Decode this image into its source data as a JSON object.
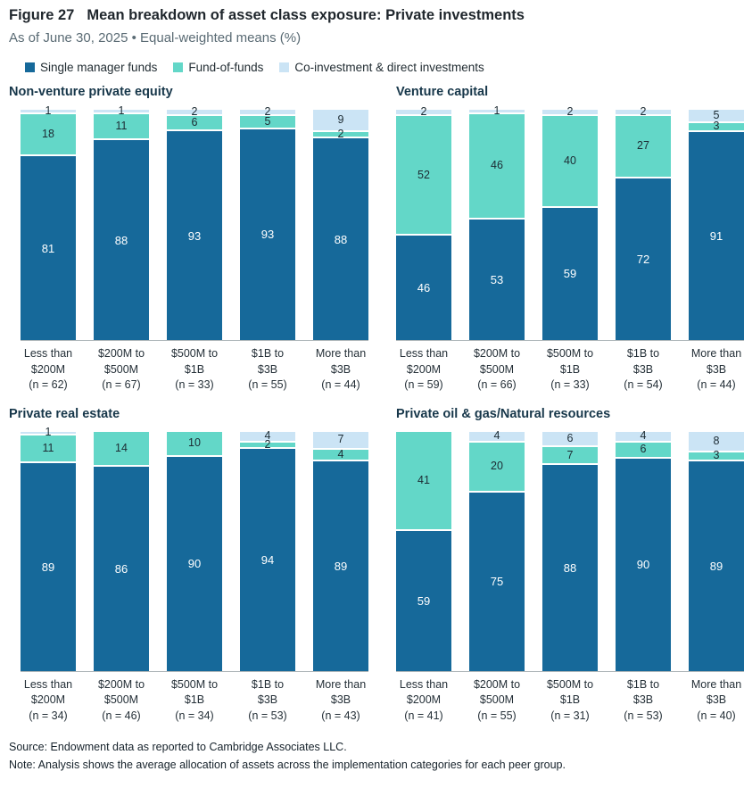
{
  "header": {
    "figure_label": "Figure 27",
    "title": "Mean breakdown of asset class exposure: Private investments",
    "subtitle": "As of June 30, 2025 • Equal-weighted means (%)"
  },
  "legend": {
    "items": [
      {
        "label": "Single manager funds",
        "color": "#16699a"
      },
      {
        "label": "Fund-of-funds",
        "color": "#63d7c8"
      },
      {
        "label": "Co-investment & direct investments",
        "color": "#cbe4f5"
      }
    ]
  },
  "colors": {
    "single_manager_funds": "#16699a",
    "fund_of_funds": "#63d7c8",
    "co_investment": "#cbe4f5",
    "axis_line": "#adb5b8"
  },
  "chart_data": [
    {
      "type": "bar",
      "stacked": true,
      "title": "Non-venture private equity",
      "ylim": [
        0,
        100
      ],
      "grid": false,
      "legend_position": "top-shared",
      "categories": [
        [
          "Less than",
          "$200M",
          "(n = 62)"
        ],
        [
          "$200M to",
          "$500M",
          "(n = 67)"
        ],
        [
          "$500M to",
          "$1B",
          "(n = 33)"
        ],
        [
          "$1B to",
          "$3B",
          "(n = 55)"
        ],
        [
          "More than",
          "$3B",
          "(n = 44)"
        ]
      ],
      "series": [
        {
          "name": "Single manager funds",
          "values": [
            81,
            88,
            93,
            93,
            88
          ]
        },
        {
          "name": "Fund-of-funds",
          "values": [
            18,
            11,
            6,
            5,
            2
          ]
        },
        {
          "name": "Co-investment & direct investments",
          "values": [
            1,
            1,
            2,
            2,
            9
          ]
        }
      ]
    },
    {
      "type": "bar",
      "stacked": true,
      "title": "Venture capital",
      "ylim": [
        0,
        100
      ],
      "grid": false,
      "legend_position": "top-shared",
      "categories": [
        [
          "Less than",
          "$200M",
          "(n = 59)"
        ],
        [
          "$200M to",
          "$500M",
          "(n = 66)"
        ],
        [
          "$500M to",
          "$1B",
          "(n = 33)"
        ],
        [
          "$1B to",
          "$3B",
          "(n = 54)"
        ],
        [
          "More than",
          "$3B",
          "(n = 44)"
        ]
      ],
      "series": [
        {
          "name": "Single manager funds",
          "values": [
            46,
            53,
            59,
            72,
            91
          ]
        },
        {
          "name": "Fund-of-funds",
          "values": [
            52,
            46,
            40,
            27,
            3
          ]
        },
        {
          "name": "Co-investment & direct investments",
          "values": [
            2,
            1,
            2,
            2,
            5
          ]
        }
      ]
    },
    {
      "type": "bar",
      "stacked": true,
      "title": "Private real estate",
      "ylim": [
        0,
        100
      ],
      "grid": false,
      "legend_position": "top-shared",
      "categories": [
        [
          "Less than",
          "$200M",
          "(n = 34)"
        ],
        [
          "$200M to",
          "$500M",
          "(n = 46)"
        ],
        [
          "$500M to",
          "$1B",
          "(n = 34)"
        ],
        [
          "$1B to",
          "$3B",
          "(n = 53)"
        ],
        [
          "More than",
          "$3B",
          "(n = 43)"
        ]
      ],
      "series": [
        {
          "name": "Single manager funds",
          "values": [
            89,
            86,
            90,
            94,
            89
          ]
        },
        {
          "name": "Fund-of-funds",
          "values": [
            11,
            14,
            10,
            2,
            4
          ]
        },
        {
          "name": "Co-investment & direct investments",
          "values": [
            1,
            null,
            null,
            4,
            7
          ]
        }
      ]
    },
    {
      "type": "bar",
      "stacked": true,
      "title": "Private oil & gas/Natural resources",
      "ylim": [
        0,
        100
      ],
      "grid": false,
      "legend_position": "top-shared",
      "categories": [
        [
          "Less than",
          "$200M",
          "(n = 41)"
        ],
        [
          "$200M to",
          "$500M",
          "(n = 55)"
        ],
        [
          "$500M to",
          "$1B",
          "(n = 31)"
        ],
        [
          "$1B to",
          "$3B",
          "(n = 53)"
        ],
        [
          "More than",
          "$3B",
          "(n = 40)"
        ]
      ],
      "series": [
        {
          "name": "Single manager funds",
          "values": [
            59,
            75,
            88,
            90,
            89
          ]
        },
        {
          "name": "Fund-of-funds",
          "values": [
            41,
            20,
            7,
            6,
            3
          ]
        },
        {
          "name": "Co-investment & direct investments",
          "values": [
            null,
            4,
            6,
            4,
            8
          ]
        }
      ]
    }
  ],
  "footer": {
    "source": "Source: Endowment data as reported to Cambridge Associates LLC.",
    "note": "Note: Analysis shows the average allocation of assets across the implementation categories for each peer group."
  }
}
